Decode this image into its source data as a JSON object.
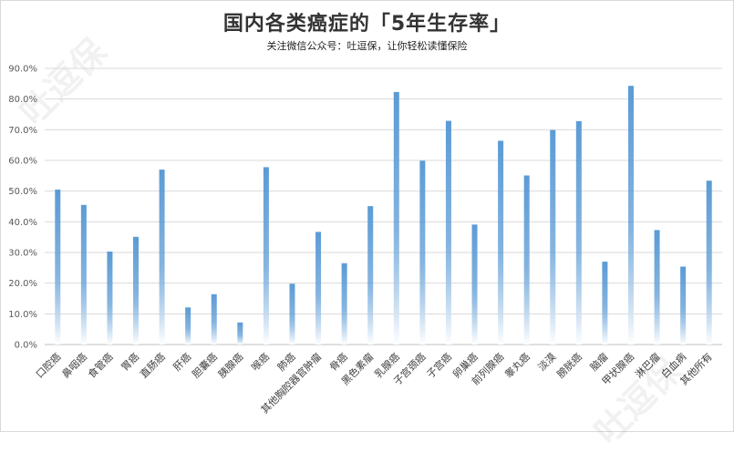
{
  "title": "国内各类癌症的「5年生存率」",
  "subtitle": "关注微信公众号：吐逗保，让你轻松读懂保险",
  "watermark": "吐逗保",
  "colors": {
    "bar_top": "#5b9bd5",
    "bar_bottom": "#ffffff",
    "grid": "#d9d9d9",
    "axis": "#bfbfbf"
  },
  "chart_data": {
    "type": "bar",
    "title": "国内各类癌症的「5年生存率」",
    "subtitle": "关注微信公众号：吐逗保，让你轻松读懂保险",
    "xlabel": "",
    "ylabel": "",
    "ylim": [
      0,
      90
    ],
    "yticks": [
      "0.0%",
      "10.0%",
      "20.0%",
      "30.0%",
      "40.0%",
      "50.0%",
      "60.0%",
      "70.0%",
      "80.0%",
      "90.0%"
    ],
    "grid": true,
    "categories": [
      "口腔癌",
      "鼻咽癌",
      "食管癌",
      "胃癌",
      "直肠癌",
      "肝癌",
      "胆囊癌",
      "胰腺癌",
      "喉癌",
      "肺癌",
      "其他胸腔器官肿瘤",
      "骨癌",
      "黑色素瘤",
      "乳腺癌",
      "子宫颈癌",
      "子宫癌",
      "卵巢癌",
      "前列腺癌",
      "睾丸癌",
      "淡漠",
      "膀胱癌",
      "脑瘤",
      "甲状腺癌",
      "淋巴瘤",
      "白血病",
      "其他所有"
    ],
    "values": [
      50.5,
      45.5,
      30.3,
      35.1,
      57.0,
      12.1,
      16.4,
      7.2,
      57.8,
      19.8,
      36.7,
      26.5,
      45.1,
      82.3,
      59.9,
      72.9,
      39.1,
      66.4,
      55.1,
      69.9,
      72.8,
      27.0,
      84.3,
      37.3,
      25.4,
      53.4
    ]
  }
}
